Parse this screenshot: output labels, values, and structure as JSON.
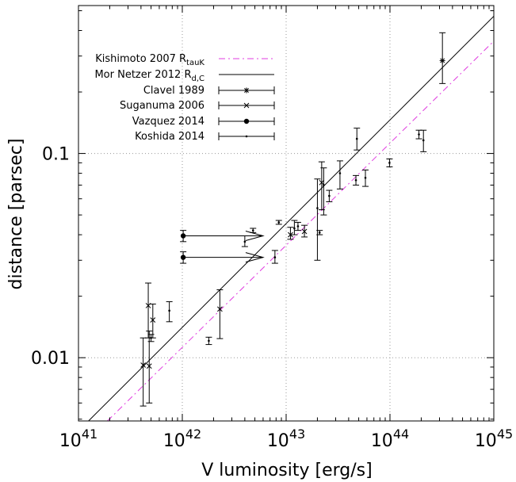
{
  "chart_data": {
    "type": "scatter",
    "title": "",
    "xlabel": "V luminosity [erg/s]",
    "ylabel": "distance [parsec]",
    "xscale": "log",
    "yscale": "log",
    "xlim": [
      1e+41,
      1e+45
    ],
    "ylim": [
      0.0049,
      0.53
    ],
    "x_tick_labels": [
      {
        "base": "10",
        "exp": "41"
      },
      {
        "base": "10",
        "exp": "42"
      },
      {
        "base": "10",
        "exp": "43"
      },
      {
        "base": "10",
        "exp": "44"
      },
      {
        "base": "10",
        "exp": "45"
      }
    ],
    "x_major_ticks": [
      1e+41,
      1e+42,
      1e+43,
      1e+44,
      1e+45
    ],
    "y_major_ticks": [
      0.01,
      0.1
    ],
    "y_tick_labels": [
      "0.01",
      "0.1"
    ],
    "grid": true,
    "legend_position": "top-left",
    "lines": [
      {
        "name": "Kishimoto 2007 R",
        "sub": "tauK",
        "style": "dash-dot",
        "color": "#e03ce0",
        "points": [
          [
            1.9e+41,
            0.0049
          ],
          [
            1e+45,
            0.355
          ]
        ]
      },
      {
        "name": "Mor  Netzer 2012 R",
        "sub": "d,C",
        "style": "solid",
        "color": "#000000",
        "points": [
          [
            1.25e+41,
            0.0049
          ],
          [
            1e+45,
            0.47
          ]
        ]
      }
    ],
    "series": [
      {
        "name": "Clavel 1989",
        "marker": "star",
        "points": [
          {
            "x": 3.2e+44,
            "y": 0.285,
            "lo": 0.22,
            "hi": 0.39
          }
        ]
      },
      {
        "name": "Suganuma 2006",
        "marker": "x",
        "points": [
          {
            "x": 4.2e+41,
            "y": 0.0092,
            "lo": 0.0058,
            "hi": 0.0125
          },
          {
            "x": 4.7e+41,
            "y": 0.018,
            "lo": 0.0125,
            "hi": 0.0232
          },
          {
            "x": 4.8e+41,
            "y": 0.0091,
            "lo": 0.006,
            "hi": 0.0135
          },
          {
            "x": 5.2e+41,
            "y": 0.0153,
            "lo": 0.0125,
            "hi": 0.0183
          },
          {
            "x": 2.3e+42,
            "y": 0.0173,
            "lo": 0.0124,
            "hi": 0.0215
          },
          {
            "x": 1.1e+43,
            "y": 0.04,
            "lo": 0.038,
            "hi": 0.0435
          },
          {
            "x": 1.5e+43,
            "y": 0.0415,
            "lo": 0.039,
            "hi": 0.0445
          },
          {
            "x": 2.2e+43,
            "y": 0.072,
            "lo": 0.053,
            "hi": 0.091
          }
        ]
      },
      {
        "name": "Vazquez 2014",
        "marker": "circle",
        "points": [
          {
            "x": 1.02e+42,
            "y": 0.0395,
            "lo": 0.037,
            "hi": 0.042,
            "arrow_to": 6e+42
          },
          {
            "x": 1.02e+42,
            "y": 0.031,
            "lo": 0.029,
            "hi": 0.033,
            "arrow_to": 6e+42
          }
        ]
      },
      {
        "name": "Koshida 2014",
        "marker": "dot",
        "points": [
          {
            "x": 5e+41,
            "y": 0.0125,
            "lo": 0.012,
            "hi": 0.013
          },
          {
            "x": 7.5e+41,
            "y": 0.017,
            "lo": 0.015,
            "hi": 0.0188
          },
          {
            "x": 1.8e+42,
            "y": 0.0121,
            "lo": 0.0116,
            "hi": 0.0126
          },
          {
            "x": 4e+42,
            "y": 0.037,
            "lo": 0.035,
            "hi": 0.0395
          },
          {
            "x": 4.8e+42,
            "y": 0.042,
            "lo": 0.041,
            "hi": 0.043
          },
          {
            "x": 7.8e+42,
            "y": 0.031,
            "lo": 0.029,
            "hi": 0.0335
          },
          {
            "x": 8.5e+42,
            "y": 0.046,
            "lo": 0.045,
            "hi": 0.047
          },
          {
            "x": 1.2e+43,
            "y": 0.043,
            "lo": 0.04,
            "hi": 0.047
          },
          {
            "x": 1.3e+43,
            "y": 0.044,
            "lo": 0.042,
            "hi": 0.046
          },
          {
            "x": 2e+43,
            "y": 0.054,
            "lo": 0.03,
            "hi": 0.075
          },
          {
            "x": 2.1e+43,
            "y": 0.041,
            "lo": 0.04,
            "hi": 0.042
          },
          {
            "x": 2.3e+43,
            "y": 0.07,
            "lo": 0.05,
            "hi": 0.085
          },
          {
            "x": 2.6e+43,
            "y": 0.062,
            "lo": 0.058,
            "hi": 0.066
          },
          {
            "x": 3.3e+43,
            "y": 0.08,
            "lo": 0.067,
            "hi": 0.092
          },
          {
            "x": 4.7e+43,
            "y": 0.074,
            "lo": 0.07,
            "hi": 0.078
          },
          {
            "x": 4.8e+43,
            "y": 0.118,
            "lo": 0.104,
            "hi": 0.133
          },
          {
            "x": 5.8e+43,
            "y": 0.076,
            "lo": 0.069,
            "hi": 0.083
          },
          {
            "x": 9.9e+43,
            "y": 0.09,
            "lo": 0.086,
            "hi": 0.094
          },
          {
            "x": 1.9e+44,
            "y": 0.124,
            "lo": 0.118,
            "hi": 0.13
          },
          {
            "x": 2.1e+44,
            "y": 0.116,
            "lo": 0.102,
            "hi": 0.13
          }
        ]
      }
    ]
  }
}
